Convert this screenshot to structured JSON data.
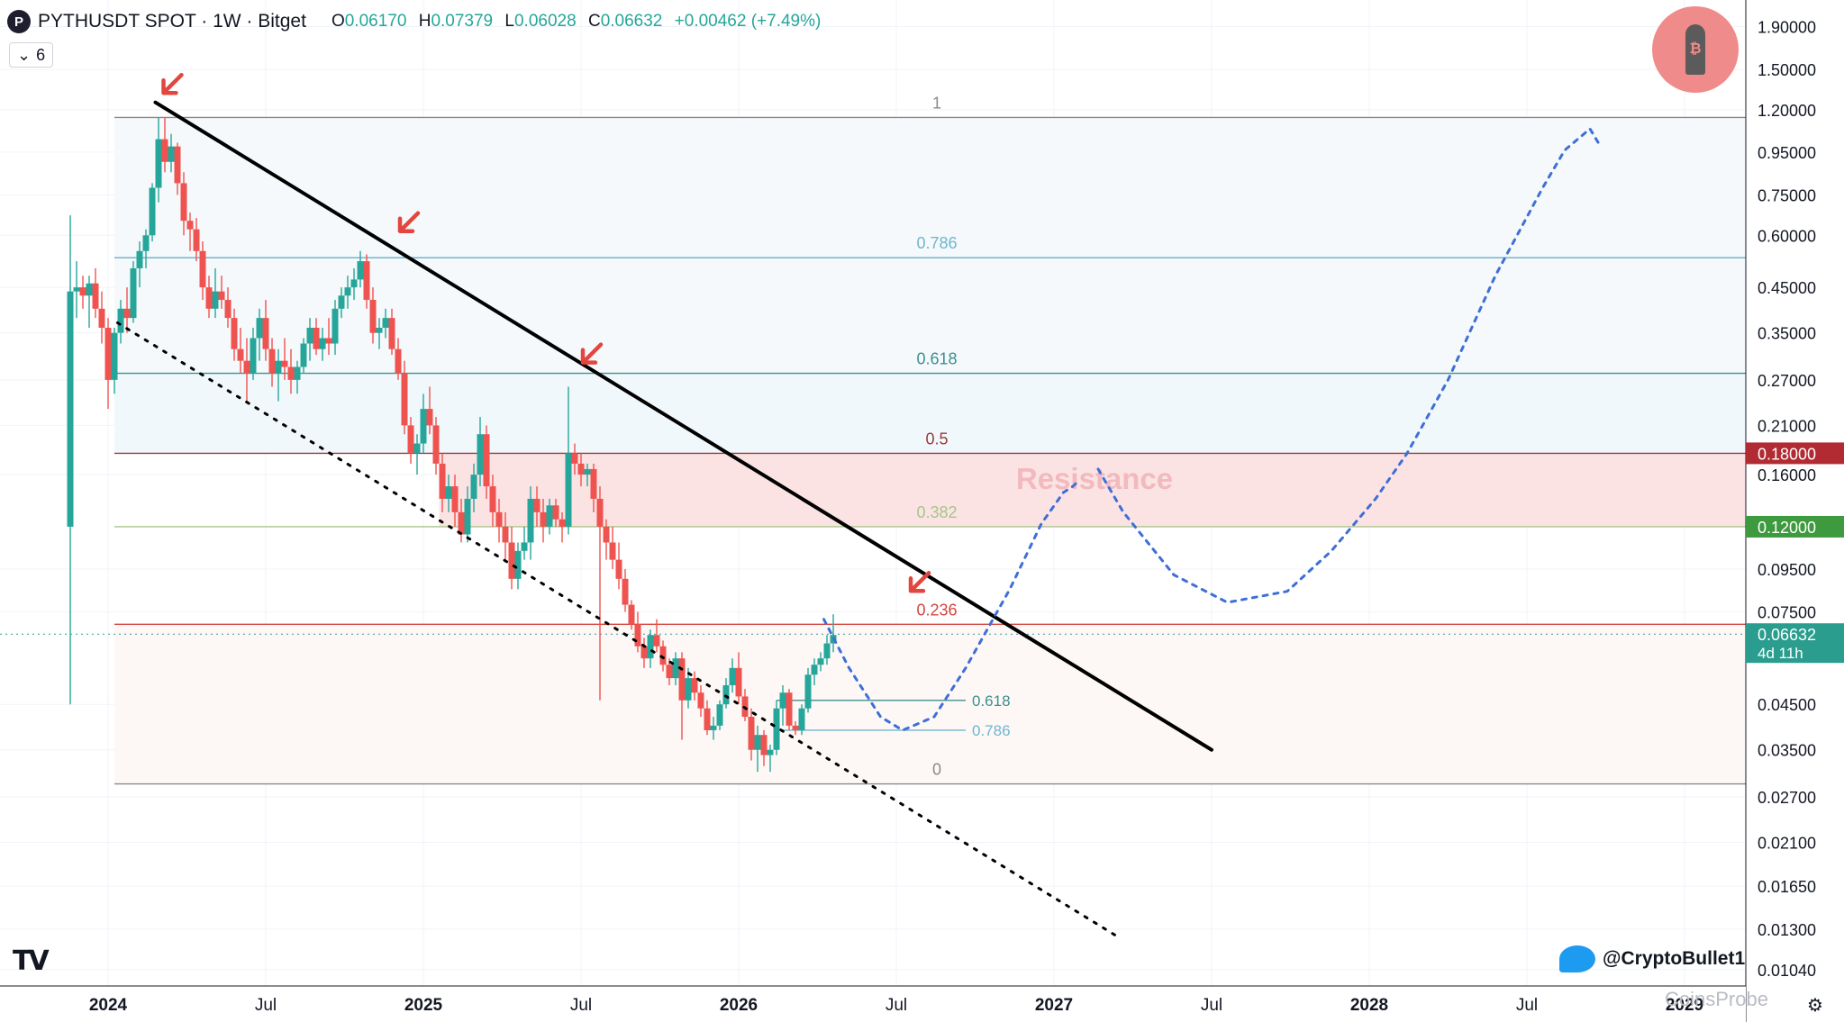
{
  "header": {
    "symbol": "PYTHUSDT SPOT · 1W · Bitget",
    "open_label": "O",
    "open": "0.06170",
    "high_label": "H",
    "high": "0.07379",
    "low_label": "L",
    "low": "0.06028",
    "close_label": "C",
    "close": "0.06632",
    "change": "+0.00462 (+7.49%)"
  },
  "indicator_toggle": {
    "count": "6"
  },
  "handle": "@CryptoBullet1",
  "watermark": "CoinsProbe",
  "colors": {
    "up": "#26a69a",
    "down": "#ef5350",
    "projection": "#3f6fd6",
    "resistance_band": "#fbe3e4"
  },
  "chart_data": {
    "type": "candlestick",
    "scale": "log",
    "ylim": [
      0.0095,
      2.2
    ],
    "x_axis_labels": [
      "2024",
      "Jul",
      "2025",
      "Jul",
      "2026",
      "Jul",
      "2027",
      "Jul",
      "2028",
      "Jul",
      "2029"
    ],
    "x_axis_bold": [
      "2024",
      "2025",
      "2026",
      "2027",
      "2028",
      "2029"
    ],
    "y_ticks": [
      "1.90000",
      "1.50000",
      "1.20000",
      "0.95000",
      "0.75000",
      "0.60000",
      "0.45000",
      "0.35000",
      "0.27000",
      "0.21000",
      "0.16000",
      "0.09500",
      "0.07500",
      "0.04500",
      "0.03500",
      "0.02700",
      "0.02100",
      "0.01650",
      "0.01300",
      "0.01040"
    ],
    "price_tags": [
      {
        "label": "0.18000",
        "value": 0.18,
        "color": "#b22b33"
      },
      {
        "label": "0.12000",
        "value": 0.12,
        "color": "#3e9a3e"
      },
      {
        "label": "0.06632",
        "sublabel": "4d 11h",
        "value": 0.06632,
        "color": "#2a9d8f"
      }
    ],
    "fib_levels": [
      {
        "label": "1",
        "value": 1.15,
        "color": "#8a8a8a"
      },
      {
        "label": "0.786",
        "value": 0.53,
        "color": "#6fb6cf"
      },
      {
        "label": "0.618",
        "value": 0.28,
        "color": "#3c8f8f"
      },
      {
        "label": "0.5",
        "value": 0.18,
        "color": "#9a3a3a"
      },
      {
        "label": "0.382",
        "value": 0.12,
        "color": "#a9c48a"
      },
      {
        "label": "0.236",
        "value": 0.07,
        "color": "#d2473e"
      },
      {
        "label": "0",
        "value": 0.029,
        "color": "#8a8a8a"
      }
    ],
    "small_fib": [
      {
        "label": "0.618",
        "value": 0.046,
        "color": "#3c8f8f"
      },
      {
        "label": "0.786",
        "value": 0.039,
        "color": "#6fb6cf"
      }
    ],
    "annotation": "Resistance",
    "resistance_zone": [
      0.12,
      0.18
    ],
    "candles": [
      {
        "t": 2023.88,
        "o": 0.12,
        "h": 0.67,
        "l": 0.045,
        "c": 0.44
      },
      {
        "t": 2023.9,
        "o": 0.44,
        "h": 0.52,
        "l": 0.38,
        "c": 0.45
      },
      {
        "t": 2023.92,
        "o": 0.45,
        "h": 0.48,
        "l": 0.4,
        "c": 0.43
      },
      {
        "t": 2023.94,
        "o": 0.43,
        "h": 0.48,
        "l": 0.36,
        "c": 0.46
      },
      {
        "t": 2023.96,
        "o": 0.46,
        "h": 0.5,
        "l": 0.38,
        "c": 0.4
      },
      {
        "t": 2023.98,
        "o": 0.4,
        "h": 0.44,
        "l": 0.33,
        "c": 0.36
      },
      {
        "t": 2024.0,
        "o": 0.36,
        "h": 0.38,
        "l": 0.23,
        "c": 0.27
      },
      {
        "t": 2024.02,
        "o": 0.27,
        "h": 0.36,
        "l": 0.25,
        "c": 0.35
      },
      {
        "t": 2024.04,
        "o": 0.35,
        "h": 0.42,
        "l": 0.33,
        "c": 0.4
      },
      {
        "t": 2024.06,
        "o": 0.4,
        "h": 0.45,
        "l": 0.35,
        "c": 0.38
      },
      {
        "t": 2024.08,
        "o": 0.38,
        "h": 0.52,
        "l": 0.37,
        "c": 0.5
      },
      {
        "t": 2024.1,
        "o": 0.5,
        "h": 0.58,
        "l": 0.45,
        "c": 0.55
      },
      {
        "t": 2024.12,
        "o": 0.55,
        "h": 0.62,
        "l": 0.5,
        "c": 0.6
      },
      {
        "t": 2024.14,
        "o": 0.6,
        "h": 0.8,
        "l": 0.58,
        "c": 0.78
      },
      {
        "t": 2024.16,
        "o": 0.78,
        "h": 1.15,
        "l": 0.72,
        "c": 1.02
      },
      {
        "t": 2024.18,
        "o": 1.02,
        "h": 1.15,
        "l": 0.85,
        "c": 0.9
      },
      {
        "t": 2024.2,
        "o": 0.9,
        "h": 1.05,
        "l": 0.85,
        "c": 0.98
      },
      {
        "t": 2024.22,
        "o": 0.98,
        "h": 1.0,
        "l": 0.75,
        "c": 0.8
      },
      {
        "t": 2024.24,
        "o": 0.8,
        "h": 0.85,
        "l": 0.6,
        "c": 0.65
      },
      {
        "t": 2024.26,
        "o": 0.65,
        "h": 0.68,
        "l": 0.55,
        "c": 0.62
      },
      {
        "t": 2024.28,
        "o": 0.62,
        "h": 0.66,
        "l": 0.52,
        "c": 0.55
      },
      {
        "t": 2024.3,
        "o": 0.55,
        "h": 0.58,
        "l": 0.42,
        "c": 0.45
      },
      {
        "t": 2024.32,
        "o": 0.45,
        "h": 0.48,
        "l": 0.38,
        "c": 0.4
      },
      {
        "t": 2024.34,
        "o": 0.4,
        "h": 0.5,
        "l": 0.38,
        "c": 0.44
      },
      {
        "t": 2024.36,
        "o": 0.44,
        "h": 0.48,
        "l": 0.4,
        "c": 0.42
      },
      {
        "t": 2024.38,
        "o": 0.42,
        "h": 0.45,
        "l": 0.36,
        "c": 0.38
      },
      {
        "t": 2024.4,
        "o": 0.38,
        "h": 0.4,
        "l": 0.3,
        "c": 0.32
      },
      {
        "t": 2024.42,
        "o": 0.32,
        "h": 0.36,
        "l": 0.28,
        "c": 0.3
      },
      {
        "t": 2024.44,
        "o": 0.3,
        "h": 0.34,
        "l": 0.24,
        "c": 0.28
      },
      {
        "t": 2024.46,
        "o": 0.28,
        "h": 0.36,
        "l": 0.27,
        "c": 0.34
      },
      {
        "t": 2024.48,
        "o": 0.34,
        "h": 0.4,
        "l": 0.3,
        "c": 0.38
      },
      {
        "t": 2024.5,
        "o": 0.38,
        "h": 0.42,
        "l": 0.3,
        "c": 0.32
      },
      {
        "t": 2024.52,
        "o": 0.32,
        "h": 0.34,
        "l": 0.26,
        "c": 0.28
      },
      {
        "t": 2024.54,
        "o": 0.28,
        "h": 0.32,
        "l": 0.24,
        "c": 0.3
      },
      {
        "t": 2024.56,
        "o": 0.3,
        "h": 0.34,
        "l": 0.27,
        "c": 0.29
      },
      {
        "t": 2024.58,
        "o": 0.29,
        "h": 0.32,
        "l": 0.25,
        "c": 0.27
      },
      {
        "t": 2024.6,
        "o": 0.27,
        "h": 0.3,
        "l": 0.25,
        "c": 0.29
      },
      {
        "t": 2024.62,
        "o": 0.29,
        "h": 0.34,
        "l": 0.28,
        "c": 0.33
      },
      {
        "t": 2024.64,
        "o": 0.33,
        "h": 0.38,
        "l": 0.3,
        "c": 0.36
      },
      {
        "t": 2024.66,
        "o": 0.36,
        "h": 0.38,
        "l": 0.31,
        "c": 0.32
      },
      {
        "t": 2024.68,
        "o": 0.32,
        "h": 0.36,
        "l": 0.3,
        "c": 0.34
      },
      {
        "t": 2024.7,
        "o": 0.34,
        "h": 0.38,
        "l": 0.31,
        "c": 0.33
      },
      {
        "t": 2024.72,
        "o": 0.33,
        "h": 0.42,
        "l": 0.31,
        "c": 0.4
      },
      {
        "t": 2024.74,
        "o": 0.4,
        "h": 0.45,
        "l": 0.38,
        "c": 0.43
      },
      {
        "t": 2024.76,
        "o": 0.43,
        "h": 0.48,
        "l": 0.4,
        "c": 0.45
      },
      {
        "t": 2024.78,
        "o": 0.45,
        "h": 0.5,
        "l": 0.42,
        "c": 0.47
      },
      {
        "t": 2024.8,
        "o": 0.47,
        "h": 0.55,
        "l": 0.45,
        "c": 0.52
      },
      {
        "t": 2024.82,
        "o": 0.52,
        "h": 0.54,
        "l": 0.4,
        "c": 0.42
      },
      {
        "t": 2024.84,
        "o": 0.42,
        "h": 0.45,
        "l": 0.33,
        "c": 0.35
      },
      {
        "t": 2024.86,
        "o": 0.35,
        "h": 0.38,
        "l": 0.32,
        "c": 0.36
      },
      {
        "t": 2024.88,
        "o": 0.36,
        "h": 0.4,
        "l": 0.34,
        "c": 0.38
      },
      {
        "t": 2024.9,
        "o": 0.38,
        "h": 0.4,
        "l": 0.31,
        "c": 0.32
      },
      {
        "t": 2024.92,
        "o": 0.32,
        "h": 0.34,
        "l": 0.27,
        "c": 0.28
      },
      {
        "t": 2024.94,
        "o": 0.28,
        "h": 0.3,
        "l": 0.2,
        "c": 0.21
      },
      {
        "t": 2024.96,
        "o": 0.21,
        "h": 0.22,
        "l": 0.17,
        "c": 0.18
      },
      {
        "t": 2024.98,
        "o": 0.18,
        "h": 0.2,
        "l": 0.16,
        "c": 0.19
      },
      {
        "t": 2025.0,
        "o": 0.19,
        "h": 0.25,
        "l": 0.18,
        "c": 0.23
      },
      {
        "t": 2025.02,
        "o": 0.23,
        "h": 0.26,
        "l": 0.2,
        "c": 0.21
      },
      {
        "t": 2025.04,
        "o": 0.21,
        "h": 0.22,
        "l": 0.16,
        "c": 0.17
      },
      {
        "t": 2025.06,
        "o": 0.17,
        "h": 0.18,
        "l": 0.13,
        "c": 0.14
      },
      {
        "t": 2025.08,
        "o": 0.14,
        "h": 0.16,
        "l": 0.13,
        "c": 0.15
      },
      {
        "t": 2025.1,
        "o": 0.15,
        "h": 0.16,
        "l": 0.12,
        "c": 0.13
      },
      {
        "t": 2025.12,
        "o": 0.13,
        "h": 0.14,
        "l": 0.11,
        "c": 0.115
      },
      {
        "t": 2025.14,
        "o": 0.115,
        "h": 0.15,
        "l": 0.11,
        "c": 0.14
      },
      {
        "t": 2025.16,
        "o": 0.14,
        "h": 0.17,
        "l": 0.13,
        "c": 0.16
      },
      {
        "t": 2025.18,
        "o": 0.16,
        "h": 0.22,
        "l": 0.15,
        "c": 0.2
      },
      {
        "t": 2025.2,
        "o": 0.2,
        "h": 0.21,
        "l": 0.14,
        "c": 0.15
      },
      {
        "t": 2025.22,
        "o": 0.15,
        "h": 0.16,
        "l": 0.12,
        "c": 0.13
      },
      {
        "t": 2025.24,
        "o": 0.13,
        "h": 0.14,
        "l": 0.11,
        "c": 0.12
      },
      {
        "t": 2025.26,
        "o": 0.12,
        "h": 0.13,
        "l": 0.1,
        "c": 0.11
      },
      {
        "t": 2025.28,
        "o": 0.11,
        "h": 0.12,
        "l": 0.085,
        "c": 0.09
      },
      {
        "t": 2025.3,
        "o": 0.09,
        "h": 0.11,
        "l": 0.085,
        "c": 0.105
      },
      {
        "t": 2025.32,
        "o": 0.105,
        "h": 0.12,
        "l": 0.1,
        "c": 0.11
      },
      {
        "t": 2025.34,
        "o": 0.11,
        "h": 0.15,
        "l": 0.1,
        "c": 0.14
      },
      {
        "t": 2025.36,
        "o": 0.14,
        "h": 0.15,
        "l": 0.12,
        "c": 0.13
      },
      {
        "t": 2025.38,
        "o": 0.13,
        "h": 0.14,
        "l": 0.11,
        "c": 0.12
      },
      {
        "t": 2025.4,
        "o": 0.12,
        "h": 0.14,
        "l": 0.115,
        "c": 0.135
      },
      {
        "t": 2025.42,
        "o": 0.135,
        "h": 0.14,
        "l": 0.12,
        "c": 0.125
      },
      {
        "t": 2025.44,
        "o": 0.125,
        "h": 0.13,
        "l": 0.11,
        "c": 0.12
      },
      {
        "t": 2025.46,
        "o": 0.12,
        "h": 0.26,
        "l": 0.115,
        "c": 0.18
      },
      {
        "t": 2025.48,
        "o": 0.18,
        "h": 0.19,
        "l": 0.16,
        "c": 0.17
      },
      {
        "t": 2025.5,
        "o": 0.17,
        "h": 0.18,
        "l": 0.15,
        "c": 0.16
      },
      {
        "t": 2025.52,
        "o": 0.16,
        "h": 0.17,
        "l": 0.15,
        "c": 0.165
      },
      {
        "t": 2025.54,
        "o": 0.165,
        "h": 0.17,
        "l": 0.13,
        "c": 0.14
      },
      {
        "t": 2025.56,
        "o": 0.14,
        "h": 0.15,
        "l": 0.046,
        "c": 0.12
      },
      {
        "t": 2025.58,
        "o": 0.12,
        "h": 0.125,
        "l": 0.1,
        "c": 0.11
      },
      {
        "t": 2025.6,
        "o": 0.11,
        "h": 0.12,
        "l": 0.095,
        "c": 0.1
      },
      {
        "t": 2025.62,
        "o": 0.1,
        "h": 0.11,
        "l": 0.085,
        "c": 0.09
      },
      {
        "t": 2025.64,
        "o": 0.09,
        "h": 0.095,
        "l": 0.075,
        "c": 0.078
      },
      {
        "t": 2025.66,
        "o": 0.078,
        "h": 0.08,
        "l": 0.068,
        "c": 0.07
      },
      {
        "t": 2025.68,
        "o": 0.07,
        "h": 0.075,
        "l": 0.06,
        "c": 0.062
      },
      {
        "t": 2025.7,
        "o": 0.062,
        "h": 0.065,
        "l": 0.055,
        "c": 0.058
      },
      {
        "t": 2025.72,
        "o": 0.058,
        "h": 0.068,
        "l": 0.055,
        "c": 0.066
      },
      {
        "t": 2025.74,
        "o": 0.066,
        "h": 0.072,
        "l": 0.06,
        "c": 0.062
      },
      {
        "t": 2025.76,
        "o": 0.062,
        "h": 0.064,
        "l": 0.054,
        "c": 0.056
      },
      {
        "t": 2025.78,
        "o": 0.056,
        "h": 0.058,
        "l": 0.05,
        "c": 0.052
      },
      {
        "t": 2025.8,
        "o": 0.052,
        "h": 0.06,
        "l": 0.05,
        "c": 0.058
      },
      {
        "t": 2025.82,
        "o": 0.058,
        "h": 0.06,
        "l": 0.037,
        "c": 0.046
      },
      {
        "t": 2025.84,
        "o": 0.046,
        "h": 0.055,
        "l": 0.044,
        "c": 0.052
      },
      {
        "t": 2025.86,
        "o": 0.052,
        "h": 0.054,
        "l": 0.046,
        "c": 0.048
      },
      {
        "t": 2025.88,
        "o": 0.048,
        "h": 0.05,
        "l": 0.042,
        "c": 0.044
      },
      {
        "t": 2025.9,
        "o": 0.044,
        "h": 0.046,
        "l": 0.038,
        "c": 0.039
      },
      {
        "t": 2025.92,
        "o": 0.039,
        "h": 0.042,
        "l": 0.037,
        "c": 0.04
      },
      {
        "t": 2025.94,
        "o": 0.04,
        "h": 0.046,
        "l": 0.039,
        "c": 0.045
      },
      {
        "t": 2025.96,
        "o": 0.045,
        "h": 0.052,
        "l": 0.044,
        "c": 0.05
      },
      {
        "t": 2025.98,
        "o": 0.05,
        "h": 0.058,
        "l": 0.048,
        "c": 0.055
      },
      {
        "t": 2026.0,
        "o": 0.055,
        "h": 0.06,
        "l": 0.045,
        "c": 0.047
      },
      {
        "t": 2026.02,
        "o": 0.047,
        "h": 0.049,
        "l": 0.041,
        "c": 0.042
      },
      {
        "t": 2026.04,
        "o": 0.042,
        "h": 0.044,
        "l": 0.033,
        "c": 0.035
      },
      {
        "t": 2026.06,
        "o": 0.035,
        "h": 0.04,
        "l": 0.031,
        "c": 0.038
      },
      {
        "t": 2026.08,
        "o": 0.038,
        "h": 0.039,
        "l": 0.032,
        "c": 0.034
      },
      {
        "t": 2026.1,
        "o": 0.034,
        "h": 0.036,
        "l": 0.031,
        "c": 0.035
      },
      {
        "t": 2026.12,
        "o": 0.035,
        "h": 0.046,
        "l": 0.034,
        "c": 0.044
      },
      {
        "t": 2026.14,
        "o": 0.044,
        "h": 0.05,
        "l": 0.04,
        "c": 0.048
      },
      {
        "t": 2026.16,
        "o": 0.048,
        "h": 0.049,
        "l": 0.039,
        "c": 0.04
      },
      {
        "t": 2026.18,
        "o": 0.04,
        "h": 0.041,
        "l": 0.038,
        "c": 0.039
      },
      {
        "t": 2026.2,
        "o": 0.039,
        "h": 0.045,
        "l": 0.038,
        "c": 0.044
      },
      {
        "t": 2026.22,
        "o": 0.044,
        "h": 0.055,
        "l": 0.043,
        "c": 0.053
      },
      {
        "t": 2026.24,
        "o": 0.053,
        "h": 0.058,
        "l": 0.05,
        "c": 0.056
      },
      {
        "t": 2026.26,
        "o": 0.056,
        "h": 0.06,
        "l": 0.054,
        "c": 0.058
      },
      {
        "t": 2026.28,
        "o": 0.058,
        "h": 0.066,
        "l": 0.056,
        "c": 0.063
      },
      {
        "t": 2026.3,
        "o": 0.063,
        "h": 0.074,
        "l": 0.06,
        "c": 0.066
      }
    ],
    "trendlines": [
      {
        "name": "descending-resistance",
        "style": "solid",
        "points": [
          [
            2024.15,
            1.25
          ],
          [
            2027.5,
            0.035
          ]
        ]
      },
      {
        "name": "support-line",
        "style": "dotted",
        "points": [
          [
            2024.03,
            0.37
          ],
          [
            2027.2,
            0.0125
          ]
        ]
      }
    ],
    "arrows_at": [
      [
        2024.17,
        1.33
      ],
      [
        2024.92,
        0.62
      ],
      [
        2025.5,
        0.3
      ],
      [
        2026.54,
        0.085
      ]
    ],
    "projection": [
      [
        2026.27,
        0.072
      ],
      [
        2026.35,
        0.055
      ],
      [
        2026.45,
        0.042
      ],
      [
        2026.52,
        0.039
      ],
      [
        2026.62,
        0.042
      ],
      [
        2026.72,
        0.055
      ],
      [
        2026.86,
        0.085
      ],
      [
        2026.96,
        0.122
      ],
      [
        2027.03,
        0.145
      ],
      [
        2027.06,
        0.15
      ],
      [
        2027.08,
        0.155
      ]
    ],
    "projection2": [
      [
        2027.14,
        0.165
      ],
      [
        2027.22,
        0.13
      ],
      [
        2027.38,
        0.092
      ],
      [
        2027.55,
        0.079
      ],
      [
        2027.74,
        0.084
      ],
      [
        2027.88,
        0.105
      ],
      [
        2028.02,
        0.14
      ],
      [
        2028.12,
        0.18
      ],
      [
        2028.25,
        0.27
      ],
      [
        2028.4,
        0.48
      ],
      [
        2028.55,
        0.78
      ],
      [
        2028.62,
        0.96
      ],
      [
        2028.7,
        1.08
      ],
      [
        2028.73,
        0.99
      ]
    ]
  }
}
